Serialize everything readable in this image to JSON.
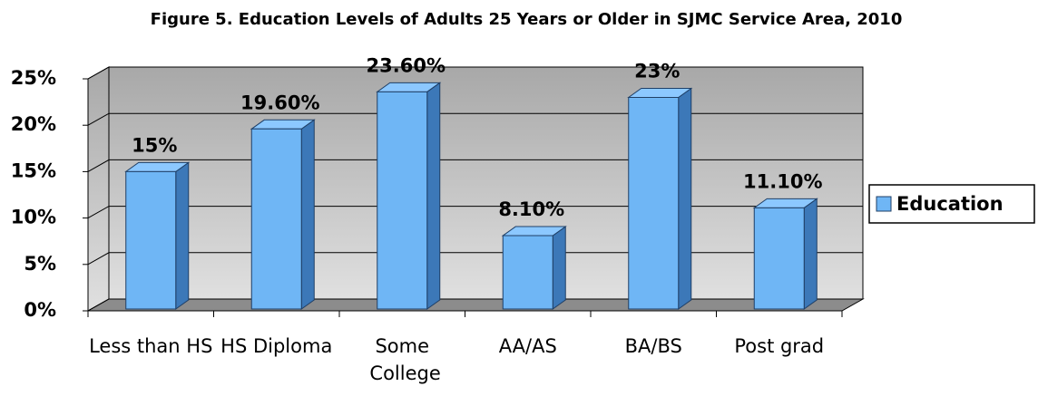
{
  "chart_data": {
    "type": "bar3d",
    "title": "Figure 5. Education Levels of Adults 25 Years or Older in SJMC Service Area, 2010",
    "categories": [
      "Less than HS",
      "HS Diploma",
      "Some College",
      "AA/AS",
      "BA/BS",
      "Post grad"
    ],
    "series": [
      {
        "name": "Education",
        "color": "#6fb6f5",
        "values": [
          15,
          19.6,
          23.6,
          8.1,
          23,
          11.1
        ],
        "value_labels": [
          "15%",
          "19.60%",
          "23.60%",
          "8.10%",
          "23%",
          "11.10%"
        ]
      }
    ],
    "ylim": [
      0,
      25
    ],
    "yticks": [
      {
        "value": 0,
        "label": "0%"
      },
      {
        "value": 5,
        "label": "5%"
      },
      {
        "value": 10,
        "label": "10%"
      },
      {
        "value": 15,
        "label": "15%"
      },
      {
        "value": 20,
        "label": "20%"
      },
      {
        "value": 25,
        "label": "25%"
      }
    ],
    "grid": true,
    "legend": "right"
  }
}
